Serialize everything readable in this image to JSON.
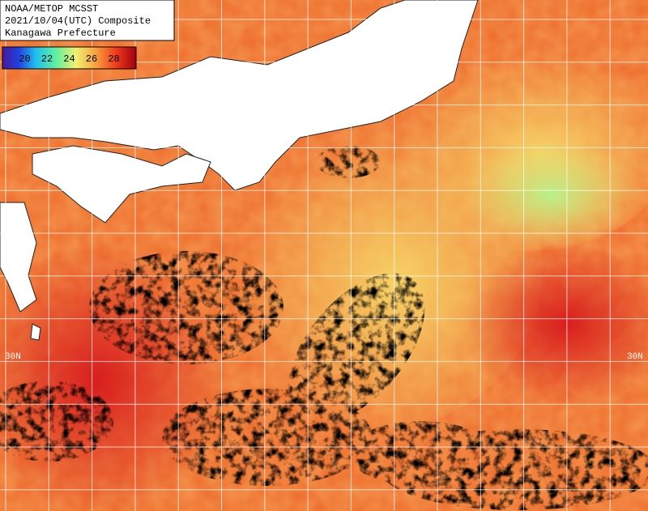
{
  "header": {
    "lines": [
      "NOAA/METOP MCSST",
      "2021/10/04(UTC) Composite",
      "Kanagawa Prefecture"
    ]
  },
  "colorbar": {
    "ticks": [
      20,
      22,
      24,
      26,
      28
    ]
  },
  "grid_labels": {
    "left": "30N",
    "right": "30N"
  }
}
